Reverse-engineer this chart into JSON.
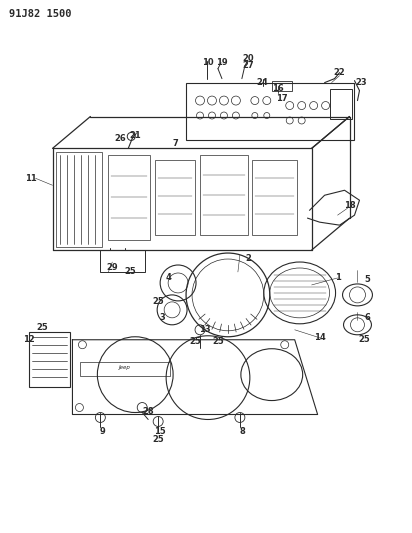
{
  "title_code": "91J82 1500",
  "bg_color": "#ffffff",
  "ink_color": "#2a2a2a",
  "fig_width": 4.12,
  "fig_height": 5.33,
  "dpi": 100
}
